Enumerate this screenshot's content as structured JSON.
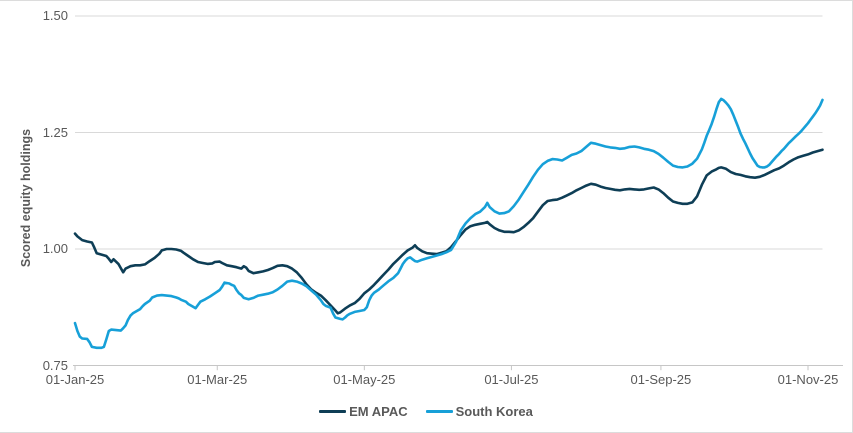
{
  "chart_data": {
    "type": "line",
    "title": "",
    "xlabel": "",
    "ylabel": "Scored equity holdings",
    "ylim": [
      0.75,
      1.5
    ],
    "grid": "horizontal",
    "legend_position": "bottom-center",
    "background_color": "#FFFFFF",
    "gridline_color": "#D9D9D9",
    "axis_line_color": "#C6C6C6",
    "tick_text_color": "#595959",
    "y_tick_labels": [
      "1.50",
      "1.25",
      "1.00",
      "0.75"
    ],
    "y_tick_values": [
      1.5,
      1.25,
      1.0,
      0.75
    ],
    "x_start_date": "2025-01-01",
    "x_tick_labels": [
      "01-Jan-25",
      "01-Mar-25",
      "01-May-25",
      "01-Jul-25",
      "01-Sep-25",
      "01-Nov-25"
    ],
    "x_tick_days": [
      0,
      59,
      120,
      181,
      243,
      304
    ],
    "x_range_days": [
      0,
      310
    ],
    "series": [
      {
        "name": "EM APAC",
        "color": "#0E3E56",
        "x_days": [
          0,
          1,
          3,
          5,
          7,
          8,
          9,
          11,
          13,
          14,
          15,
          16,
          18,
          19,
          20,
          21,
          23,
          25,
          27,
          29,
          31,
          33,
          35,
          36,
          38,
          40,
          42,
          44,
          45,
          47,
          49,
          51,
          53,
          55,
          57,
          58,
          60,
          61,
          63,
          65,
          67,
          69,
          70,
          71,
          72,
          74,
          76,
          78,
          80,
          82,
          84,
          86,
          88,
          90,
          92,
          94,
          96,
          98,
          100,
          102,
          104,
          106,
          108,
          109,
          110,
          112,
          114,
          116,
          118,
          120,
          122,
          124,
          126,
          128,
          130,
          132,
          134,
          136,
          138,
          140,
          141,
          142,
          144,
          146,
          148,
          150,
          152,
          154,
          156,
          158,
          160,
          162,
          164,
          166,
          168,
          170,
          171,
          172,
          174,
          176,
          178,
          180,
          182,
          184,
          186,
          188,
          190,
          192,
          194,
          196,
          198,
          200,
          202,
          204,
          206,
          208,
          210,
          212,
          214,
          216,
          218,
          220,
          222,
          224,
          226,
          228,
          230,
          232,
          234,
          236,
          238,
          240,
          242,
          244,
          246,
          248,
          250,
          252,
          254,
          256,
          258,
          260,
          262,
          264,
          266,
          267,
          268,
          270,
          272,
          274,
          276,
          278,
          280,
          282,
          284,
          286,
          288,
          290,
          292,
          294,
          296,
          298,
          300,
          302,
          304,
          306,
          308,
          310
        ],
        "values": [
          1.033,
          1.027,
          1.019,
          1.016,
          1.014,
          1.003,
          0.991,
          0.988,
          0.985,
          0.979,
          0.972,
          0.978,
          0.968,
          0.959,
          0.95,
          0.958,
          0.963,
          0.965,
          0.965,
          0.967,
          0.974,
          0.981,
          0.99,
          0.997,
          1.0,
          1.0,
          0.999,
          0.996,
          0.992,
          0.985,
          0.978,
          0.972,
          0.97,
          0.968,
          0.969,
          0.972,
          0.973,
          0.97,
          0.965,
          0.963,
          0.961,
          0.958,
          0.963,
          0.96,
          0.953,
          0.948,
          0.95,
          0.952,
          0.955,
          0.959,
          0.964,
          0.965,
          0.963,
          0.958,
          0.95,
          0.938,
          0.924,
          0.913,
          0.906,
          0.9,
          0.89,
          0.879,
          0.868,
          0.862,
          0.864,
          0.872,
          0.879,
          0.884,
          0.893,
          0.905,
          0.913,
          0.923,
          0.934,
          0.945,
          0.956,
          0.968,
          0.978,
          0.988,
          0.997,
          1.003,
          1.008,
          1.002,
          0.995,
          0.991,
          0.99,
          0.989,
          0.992,
          0.995,
          1.004,
          1.017,
          1.03,
          1.042,
          1.049,
          1.052,
          1.054,
          1.056,
          1.058,
          1.053,
          1.045,
          1.04,
          1.037,
          1.037,
          1.036,
          1.04,
          1.047,
          1.056,
          1.066,
          1.08,
          1.094,
          1.103,
          1.105,
          1.106,
          1.11,
          1.115,
          1.12,
          1.126,
          1.131,
          1.136,
          1.14,
          1.138,
          1.134,
          1.131,
          1.129,
          1.127,
          1.126,
          1.128,
          1.129,
          1.128,
          1.127,
          1.128,
          1.13,
          1.132,
          1.128,
          1.12,
          1.11,
          1.102,
          1.099,
          1.097,
          1.097,
          1.1,
          1.113,
          1.138,
          1.158,
          1.166,
          1.171,
          1.174,
          1.175,
          1.172,
          1.165,
          1.161,
          1.159,
          1.156,
          1.154,
          1.153,
          1.155,
          1.159,
          1.164,
          1.169,
          1.173,
          1.179,
          1.186,
          1.192,
          1.197,
          1.2,
          1.203,
          1.207,
          1.21,
          1.213
        ]
      },
      {
        "name": "South Korea",
        "color": "#17A0D8",
        "x_days": [
          0,
          1,
          2,
          3,
          5,
          6,
          7,
          9,
          11,
          12,
          13,
          14,
          15,
          17,
          19,
          20,
          21,
          22,
          23,
          24,
          25,
          27,
          28,
          29,
          31,
          32,
          34,
          36,
          38,
          40,
          42,
          43,
          44,
          46,
          47,
          49,
          50,
          51,
          52,
          54,
          56,
          58,
          60,
          61,
          62,
          64,
          65,
          66,
          67,
          68,
          69,
          70,
          72,
          74,
          76,
          78,
          80,
          82,
          84,
          86,
          88,
          90,
          92,
          94,
          96,
          98,
          100,
          101,
          102,
          103,
          104,
          106,
          107,
          108,
          110,
          111,
          112,
          113,
          114,
          116,
          118,
          120,
          121,
          122,
          123,
          124,
          126,
          128,
          130,
          132,
          134,
          135,
          136,
          137,
          138,
          139,
          140,
          141,
          142,
          144,
          146,
          148,
          150,
          152,
          154,
          156,
          158,
          160,
          162,
          164,
          166,
          168,
          170,
          171,
          172,
          174,
          176,
          178,
          180,
          182,
          184,
          186,
          188,
          190,
          192,
          194,
          196,
          198,
          200,
          202,
          204,
          206,
          208,
          210,
          212,
          214,
          216,
          218,
          220,
          222,
          224,
          226,
          228,
          230,
          232,
          234,
          236,
          238,
          240,
          242,
          244,
          246,
          248,
          250,
          252,
          254,
          256,
          258,
          260,
          261,
          262,
          263,
          264,
          265,
          266,
          267,
          268,
          269,
          270,
          271,
          272,
          273,
          274,
          275,
          276,
          277,
          278,
          279,
          280,
          281,
          282,
          283,
          284,
          285,
          286,
          287,
          288,
          289,
          290,
          291,
          292,
          293,
          294,
          295,
          296,
          297,
          298,
          299,
          300,
          301,
          302,
          303,
          304,
          305,
          306,
          307,
          308,
          309,
          310
        ],
        "values": [
          0.841,
          0.824,
          0.812,
          0.808,
          0.807,
          0.8,
          0.79,
          0.788,
          0.788,
          0.79,
          0.806,
          0.824,
          0.827,
          0.826,
          0.825,
          0.83,
          0.836,
          0.848,
          0.857,
          0.862,
          0.865,
          0.871,
          0.877,
          0.882,
          0.889,
          0.896,
          0.9,
          0.901,
          0.9,
          0.899,
          0.896,
          0.894,
          0.891,
          0.887,
          0.882,
          0.876,
          0.873,
          0.88,
          0.887,
          0.892,
          0.898,
          0.905,
          0.912,
          0.919,
          0.928,
          0.926,
          0.923,
          0.921,
          0.912,
          0.905,
          0.901,
          0.895,
          0.892,
          0.895,
          0.9,
          0.902,
          0.904,
          0.907,
          0.913,
          0.921,
          0.93,
          0.932,
          0.93,
          0.926,
          0.92,
          0.911,
          0.902,
          0.896,
          0.89,
          0.882,
          0.878,
          0.874,
          0.862,
          0.853,
          0.85,
          0.849,
          0.853,
          0.858,
          0.861,
          0.865,
          0.867,
          0.869,
          0.875,
          0.89,
          0.9,
          0.906,
          0.913,
          0.922,
          0.931,
          0.938,
          0.948,
          0.958,
          0.968,
          0.975,
          0.98,
          0.982,
          0.978,
          0.974,
          0.973,
          0.977,
          0.98,
          0.983,
          0.986,
          0.989,
          0.993,
          0.998,
          1.015,
          1.04,
          1.055,
          1.066,
          1.075,
          1.08,
          1.09,
          1.099,
          1.09,
          1.081,
          1.076,
          1.077,
          1.081,
          1.092,
          1.106,
          1.122,
          1.138,
          1.155,
          1.17,
          1.182,
          1.189,
          1.193,
          1.192,
          1.19,
          1.196,
          1.202,
          1.205,
          1.21,
          1.219,
          1.228,
          1.226,
          1.223,
          1.22,
          1.218,
          1.217,
          1.215,
          1.216,
          1.219,
          1.22,
          1.218,
          1.215,
          1.213,
          1.21,
          1.204,
          1.196,
          1.187,
          1.179,
          1.176,
          1.175,
          1.177,
          1.183,
          1.194,
          1.214,
          1.228,
          1.243,
          1.255,
          1.268,
          1.283,
          1.3,
          1.315,
          1.322,
          1.319,
          1.314,
          1.308,
          1.3,
          1.288,
          1.275,
          1.262,
          1.248,
          1.237,
          1.227,
          1.216,
          1.205,
          1.195,
          1.187,
          1.179,
          1.176,
          1.175,
          1.175,
          1.177,
          1.181,
          1.187,
          1.193,
          1.199,
          1.204,
          1.21,
          1.215,
          1.221,
          1.227,
          1.232,
          1.237,
          1.242,
          1.247,
          1.252,
          1.258,
          1.264,
          1.27,
          1.277,
          1.284,
          1.291,
          1.299,
          1.308,
          1.32
        ]
      }
    ]
  }
}
